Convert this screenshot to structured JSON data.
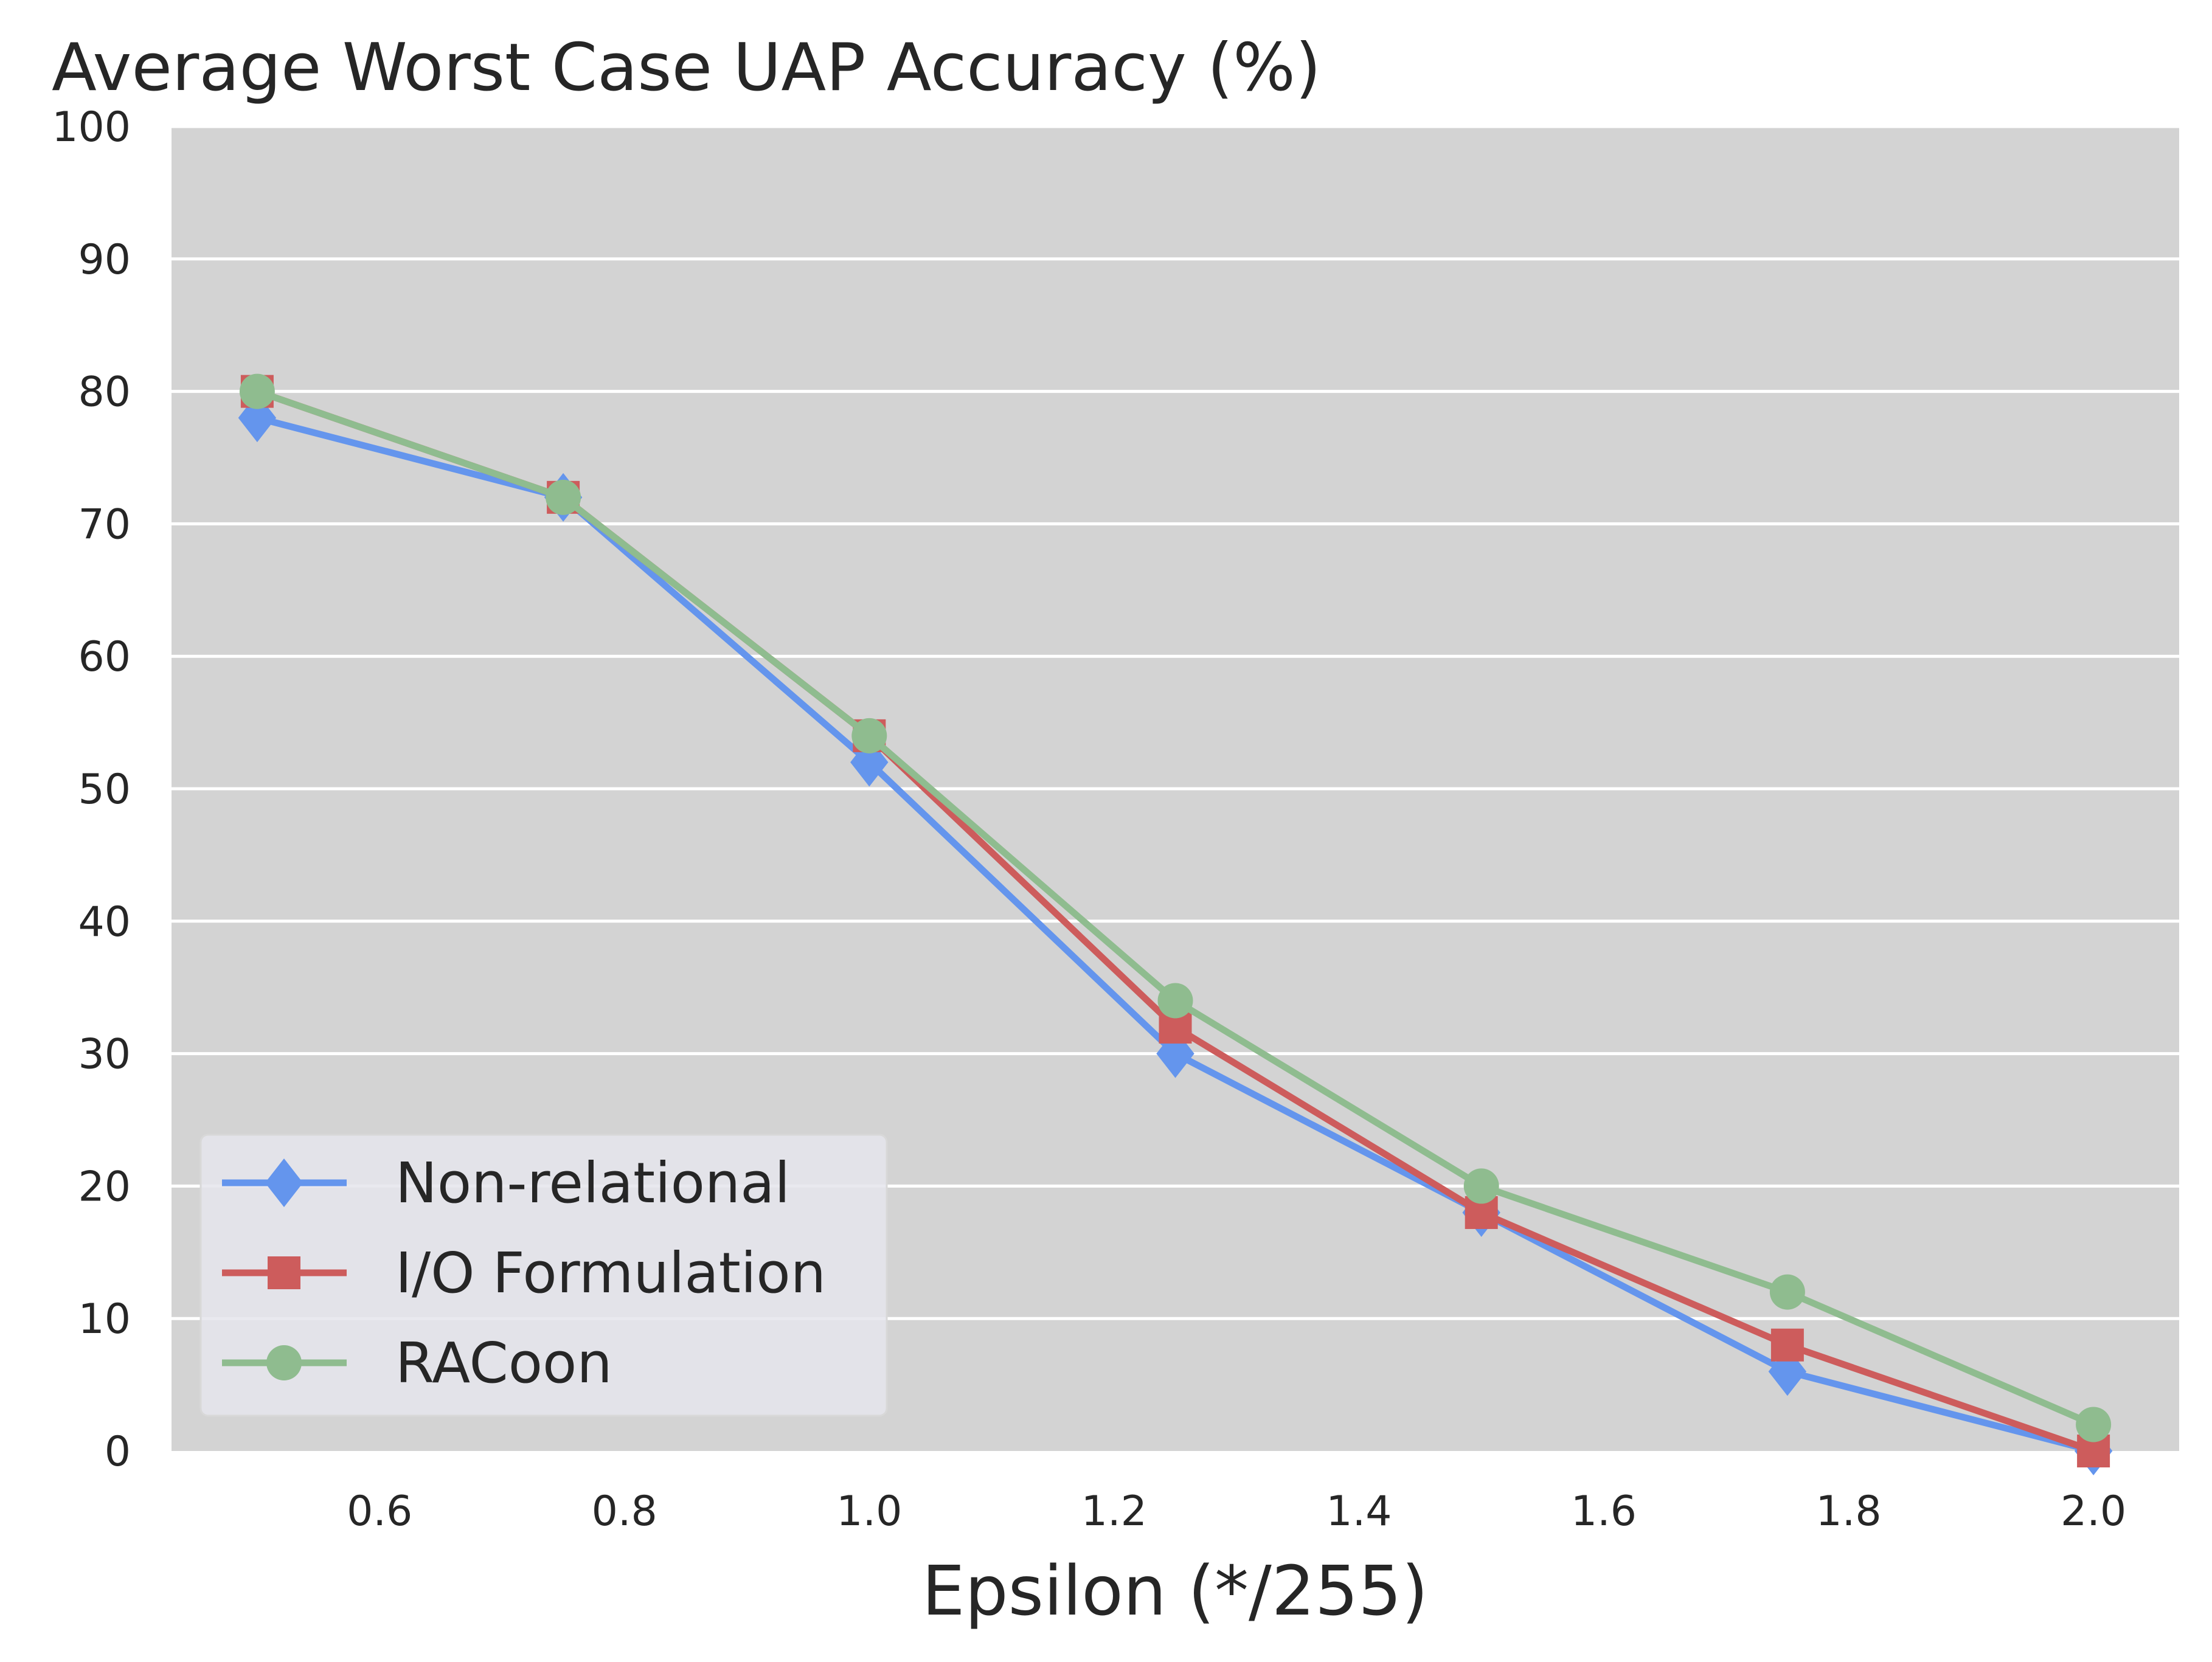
{
  "chart_data": {
    "type": "line",
    "title": "Average Worst Case UAP Accuracy (%)",
    "xlabel": "Epsilon (*/255)",
    "ylabel": "",
    "xlim": [
      0.43,
      2.07
    ],
    "ylim": [
      0,
      100
    ],
    "xticks": [
      0.6,
      0.8,
      1.0,
      1.2,
      1.4,
      1.6,
      1.8,
      2.0
    ],
    "xtick_labels": [
      "0.6",
      "0.8",
      "1.0",
      "1.2",
      "1.4",
      "1.6",
      "1.8",
      "2.0"
    ],
    "yticks": [
      0,
      10,
      20,
      30,
      40,
      50,
      60,
      70,
      80,
      90,
      100
    ],
    "ytick_labels": [
      "0",
      "10",
      "20",
      "30",
      "40",
      "50",
      "60",
      "70",
      "80",
      "90",
      "100"
    ],
    "grid": "horizontal",
    "legend_position": "lower-left",
    "x": [
      0.5,
      0.75,
      1.0,
      1.25,
      1.5,
      1.75,
      2.0
    ],
    "series": [
      {
        "name": "Non-relational",
        "marker": "diamond",
        "color": "#6495ED",
        "values": [
          78,
          72,
          52,
          30,
          18,
          6,
          0
        ]
      },
      {
        "name": "I/O Formulation",
        "marker": "square",
        "color": "#CD5C5C",
        "values": [
          80,
          72,
          54,
          32,
          18,
          8,
          0
        ]
      },
      {
        "name": "RACoon",
        "marker": "circle",
        "color": "#8FBC8F",
        "values": [
          80,
          72,
          54,
          34,
          20,
          12,
          2
        ]
      }
    ],
    "colors": {
      "plot_background": "#D3D3D3",
      "grid": "#FFFFFF",
      "legend_background": "#E5E5EC"
    }
  }
}
